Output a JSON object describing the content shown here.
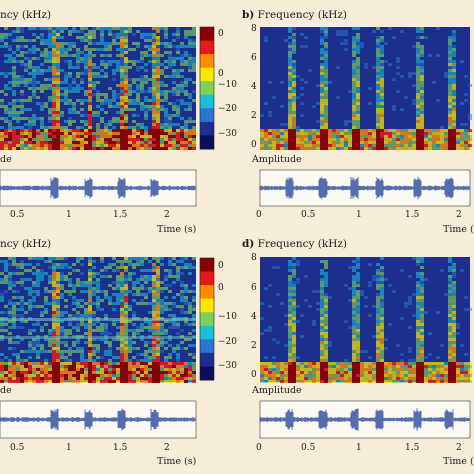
{
  "panels": [
    {
      "letter": "",
      "title": "ncy (kHz)",
      "amp_label": "de",
      "time_label": "Time (s)",
      "x_ticks": [
        "0.5",
        "1",
        "1.5",
        "2"
      ],
      "colorbar_ticks": [
        "0",
        "0",
        "−10",
        "−20",
        "−30"
      ]
    },
    {
      "letter": "b)",
      "title": "Frequency (kHz)",
      "amp_label": "Amplitude",
      "time_label": "Time (s)",
      "y_ticks": [
        "8",
        "6",
        "4",
        "2",
        "0"
      ],
      "x_ticks": [
        "0",
        "0.5",
        "1",
        "1.5",
        "2"
      ]
    },
    {
      "letter": "",
      "title": "ncy (kHz)",
      "amp_label": "de",
      "time_label": "Time (s)",
      "x_ticks": [
        "0.5",
        "1",
        "1.5",
        "2"
      ],
      "colorbar_ticks": [
        "0",
        "0",
        "−10",
        "−20",
        "−30"
      ]
    },
    {
      "letter": "d)",
      "title": "Frequency (kHz)",
      "amp_label": "Amplitude",
      "time_label": "Time (s)",
      "y_ticks": [
        "8",
        "6",
        "4",
        "2",
        "0"
      ],
      "x_ticks": [
        "0",
        "0.5",
        "1",
        "1.5",
        "2"
      ]
    }
  ],
  "colors": {
    "background": "#f7ecd8",
    "spectrogram_base": "#1c2f8c",
    "waveform": "#2a4a9e",
    "colormap": [
      "#8a0000",
      "#e31a1c",
      "#ff8c00",
      "#ffe600",
      "#7fd05a",
      "#18c0d8",
      "#2c73d2",
      "#1c2f8c",
      "#0b0e5a"
    ]
  }
}
